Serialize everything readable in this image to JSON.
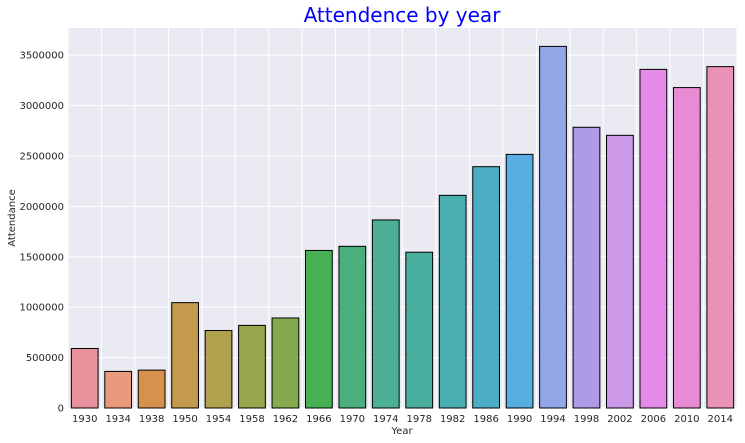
{
  "chart_data": {
    "type": "bar",
    "title": "Attendence by year",
    "xlabel": "Year",
    "ylabel": "Attendance",
    "categories": [
      "1930",
      "1934",
      "1938",
      "1950",
      "1954",
      "1958",
      "1962",
      "1966",
      "1970",
      "1974",
      "1978",
      "1982",
      "1986",
      "1990",
      "1994",
      "1998",
      "2002",
      "2006",
      "2010",
      "2014"
    ],
    "values": [
      590549,
      363000,
      375700,
      1045246,
      768607,
      819810,
      893172,
      1563135,
      1603975,
      1865753,
      1545791,
      2109723,
      2394031,
      2516215,
      3587538,
      2785100,
      2705197,
      3359439,
      3178856,
      3386810
    ],
    "ylim": [
      0,
      3770000
    ],
    "yticks": [
      0,
      500000,
      1000000,
      1500000,
      2000000,
      2500000,
      3000000,
      3500000
    ],
    "colors": [
      "#e8919c",
      "#e99a7d",
      "#d6924c",
      "#c39a4e",
      "#b0a24e",
      "#9aa64e",
      "#85aa4e",
      "#47b052",
      "#4bae7d",
      "#4bb095",
      "#4aae9e",
      "#4aafb1",
      "#4caec4",
      "#55aedf",
      "#91a7e8",
      "#ad9be8",
      "#cb99e8",
      "#e48ae8",
      "#e98ad4",
      "#e991b6"
    ],
    "background": "#eaeaf2",
    "grid": true
  }
}
